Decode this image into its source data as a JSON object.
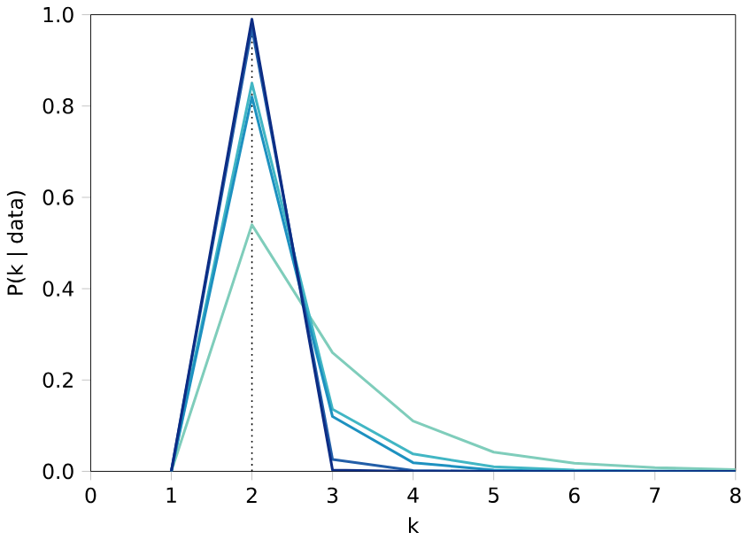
{
  "chart_data": {
    "type": "line",
    "xlabel": "k",
    "ylabel": "P(k | data)",
    "x": [
      1,
      2,
      3,
      4,
      5,
      6,
      7,
      8
    ],
    "series": [
      {
        "color": "#7fcdbb",
        "values": [
          0,
          0.54,
          0.26,
          0.11,
          0.042,
          0.018,
          0.008,
          0.004
        ]
      },
      {
        "color": "#41b6c4",
        "values": [
          0,
          0.85,
          0.136,
          0.038,
          0.01,
          0.003,
          0.001,
          0
        ]
      },
      {
        "color": "#1d91c0",
        "values": [
          0,
          0.82,
          0.12,
          0.019,
          0.003,
          0,
          0,
          0
        ]
      },
      {
        "color": "#225ea8",
        "values": [
          0,
          0.97,
          0.026,
          0.002,
          0,
          0,
          0,
          0
        ]
      },
      {
        "color": "#0c2c84",
        "values": [
          0,
          0.99,
          0.003,
          0,
          0,
          0,
          0,
          0
        ]
      }
    ],
    "xlim": [
      0,
      8
    ],
    "ylim": [
      0,
      1
    ],
    "xticks": [
      0,
      1,
      2,
      3,
      4,
      5,
      6,
      7,
      8
    ],
    "yticks": [
      {
        "value": 0,
        "label": "0.0"
      },
      0.2,
      0.4,
      0.6,
      0.8,
      {
        "value": 1,
        "label": "1.0"
      }
    ],
    "ref_lines": [
      {
        "axis": "x",
        "value": 2,
        "color": "#000000",
        "line_style": "dotted"
      }
    ],
    "marker": "none",
    "line_style": "solid"
  }
}
